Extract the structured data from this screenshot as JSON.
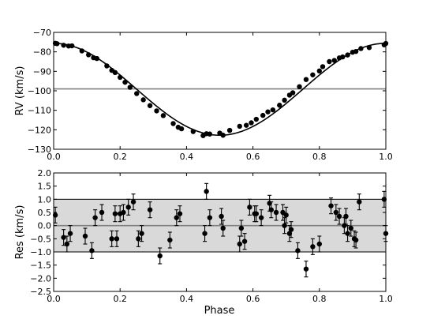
{
  "chart_data": [
    {
      "type": "scatter",
      "panel": "top",
      "title": "",
      "xlabel": "",
      "ylabel": "RV (km/s)",
      "xlim": [
        0.0,
        1.0
      ],
      "ylim": [
        -130,
        -70
      ],
      "xticks": [
        "0.0",
        "0.2",
        "0.4",
        "0.6",
        "0.8",
        "1.0"
      ],
      "yticks": [
        "−70",
        "−80",
        "−90",
        "−100",
        "−110",
        "−120",
        "−130"
      ],
      "xtick_values": [
        0.0,
        0.2,
        0.4,
        0.6,
        0.8,
        1.0
      ],
      "ytick_values": [
        -70,
        -80,
        -90,
        -100,
        -110,
        -120,
        -130
      ],
      "reference_line_y": -99,
      "model_curve": {
        "gamma": -99.2,
        "K": 23.6,
        "e": 0.0,
        "omega_deg": 0,
        "phase_of_maximum": 0.0
      },
      "series": [
        {
          "x": [
            0.005,
            0.01,
            0.03,
            0.045,
            0.055,
            0.085,
            0.105,
            0.12,
            0.13,
            0.16,
            0.175,
            0.185,
            0.2,
            0.215,
            0.23,
            0.25,
            0.27,
            0.29,
            0.31,
            0.33,
            0.36,
            0.375,
            0.385,
            0.42,
            0.45,
            0.46,
            0.47,
            0.5,
            0.51,
            0.53,
            0.56,
            0.58,
            0.595,
            0.61,
            0.63,
            0.645,
            0.66,
            0.68,
            0.695,
            0.71,
            0.72,
            0.74,
            0.76,
            0.78,
            0.8,
            0.81,
            0.83,
            0.845,
            0.86,
            0.87,
            0.885,
            0.9,
            0.91,
            0.925,
            0.95,
            0.995,
            1.0
          ],
          "y": [
            -75.6,
            -75.8,
            -76.6,
            -77.0,
            -76.9,
            -79.5,
            -81.5,
            -83.0,
            -83.4,
            -87.2,
            -89.5,
            -90.6,
            -93.1,
            -95.6,
            -98.2,
            -101.4,
            -104.6,
            -107.6,
            -110.3,
            -112.7,
            -116.8,
            -118.7,
            -119.5,
            -120.9,
            -123.0,
            -122.0,
            -122.2,
            -121.7,
            -122.8,
            -120.3,
            -118.2,
            -117.7,
            -116.4,
            -114.6,
            -112.6,
            -110.8,
            -109.8,
            -107.4,
            -104.8,
            -102.2,
            -101.0,
            -97.9,
            -94.2,
            -91.8,
            -89.8,
            -87.6,
            -85.0,
            -84.4,
            -83.1,
            -82.6,
            -81.6,
            -80.2,
            -79.8,
            -78.3,
            -77.8,
            -76.4,
            -75.7
          ]
        }
      ]
    },
    {
      "type": "scatter",
      "panel": "bottom",
      "title": "",
      "xlabel": "Phase",
      "ylabel": "Res (km/s)",
      "xlim": [
        0.0,
        1.0
      ],
      "ylim": [
        -2.5,
        2.0
      ],
      "xticks": [
        "0.0",
        "0.2",
        "0.4",
        "0.6",
        "0.8",
        "1.0"
      ],
      "yticks": [
        "2.0",
        "1.5",
        "1.0",
        "0.5",
        "0.0",
        "−0.5",
        "−1.0",
        "−1.5",
        "−2.0",
        "−2.5"
      ],
      "xtick_values": [
        0.0,
        0.2,
        0.4,
        0.6,
        0.8,
        1.0
      ],
      "ytick_values": [
        2.0,
        1.5,
        1.0,
        0.5,
        0.0,
        -0.5,
        -1.0,
        -1.5,
        -2.0,
        -2.5
      ],
      "reference_line_y": 0.0,
      "band": [
        -1.0,
        1.0
      ],
      "band_color": "#d9d9d9",
      "series": [
        {
          "x": [
            0.005,
            0.03,
            0.04,
            0.05,
            0.095,
            0.115,
            0.125,
            0.145,
            0.175,
            0.185,
            0.19,
            0.2,
            0.21,
            0.225,
            0.24,
            0.255,
            0.265,
            0.29,
            0.32,
            0.35,
            0.37,
            0.38,
            0.455,
            0.46,
            0.47,
            0.505,
            0.51,
            0.56,
            0.565,
            0.575,
            0.59,
            0.605,
            0.61,
            0.625,
            0.65,
            0.655,
            0.67,
            0.69,
            0.695,
            0.7,
            0.71,
            0.715,
            0.735,
            0.76,
            0.78,
            0.8,
            0.835,
            0.85,
            0.86,
            0.875,
            0.88,
            0.885,
            0.895,
            0.905,
            0.91,
            0.92,
            0.995,
            1.0
          ],
          "y": [
            0.4,
            -0.45,
            -0.7,
            -0.3,
            -0.4,
            -0.95,
            0.3,
            0.5,
            -0.5,
            0.45,
            -0.5,
            0.45,
            0.5,
            0.7,
            0.9,
            -0.5,
            -0.3,
            0.6,
            -1.15,
            -0.55,
            0.3,
            0.45,
            -0.3,
            1.3,
            0.3,
            0.35,
            -0.1,
            -0.7,
            -0.1,
            -0.6,
            0.7,
            0.45,
            0.45,
            0.3,
            0.85,
            0.6,
            0.5,
            0.5,
            0.0,
            0.4,
            -0.3,
            -0.15,
            -0.95,
            -1.65,
            -0.8,
            -0.7,
            0.75,
            0.5,
            0.35,
            0.0,
            0.35,
            -0.3,
            -0.1,
            -0.5,
            -0.55,
            0.9,
            1.0,
            -0.3
          ],
          "yerr": 0.3
        }
      ]
    }
  ],
  "colors": {
    "marker": "#000000",
    "reference_line": "#808080",
    "band": "#d9d9d9"
  }
}
